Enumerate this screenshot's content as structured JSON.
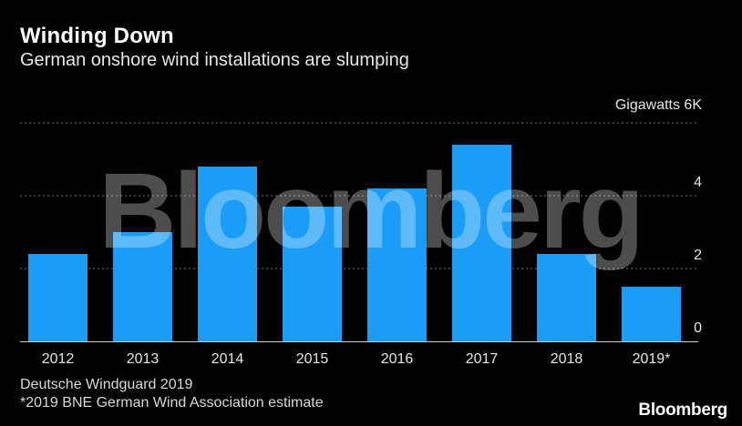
{
  "title": "Winding Down",
  "subtitle": "German onshore wind installations are slumping",
  "unit_label": "Gigawatts 6K",
  "source": "Deutsche Windguard 2019",
  "footnote": "*2019 BNE German Wind Association estimate",
  "brand": "Bloomberg",
  "watermark": "Bloomberg",
  "colors": {
    "bar": "#1a9cf7",
    "background": "#000000",
    "grid": "#777777",
    "text": "#ffffff"
  },
  "chart_data": {
    "type": "bar",
    "categories": [
      "2012",
      "2013",
      "2014",
      "2015",
      "2016",
      "2017",
      "2018",
      "2019*"
    ],
    "values": [
      2.4,
      3.0,
      4.8,
      3.7,
      4.2,
      5.4,
      2.4,
      1.5
    ],
    "ylim": [
      0,
      6
    ],
    "yticks": [
      0,
      2,
      4
    ],
    "ytick_labels": [
      "0",
      "2",
      "4"
    ],
    "grid": true,
    "ylabel": "",
    "xlabel": ""
  }
}
